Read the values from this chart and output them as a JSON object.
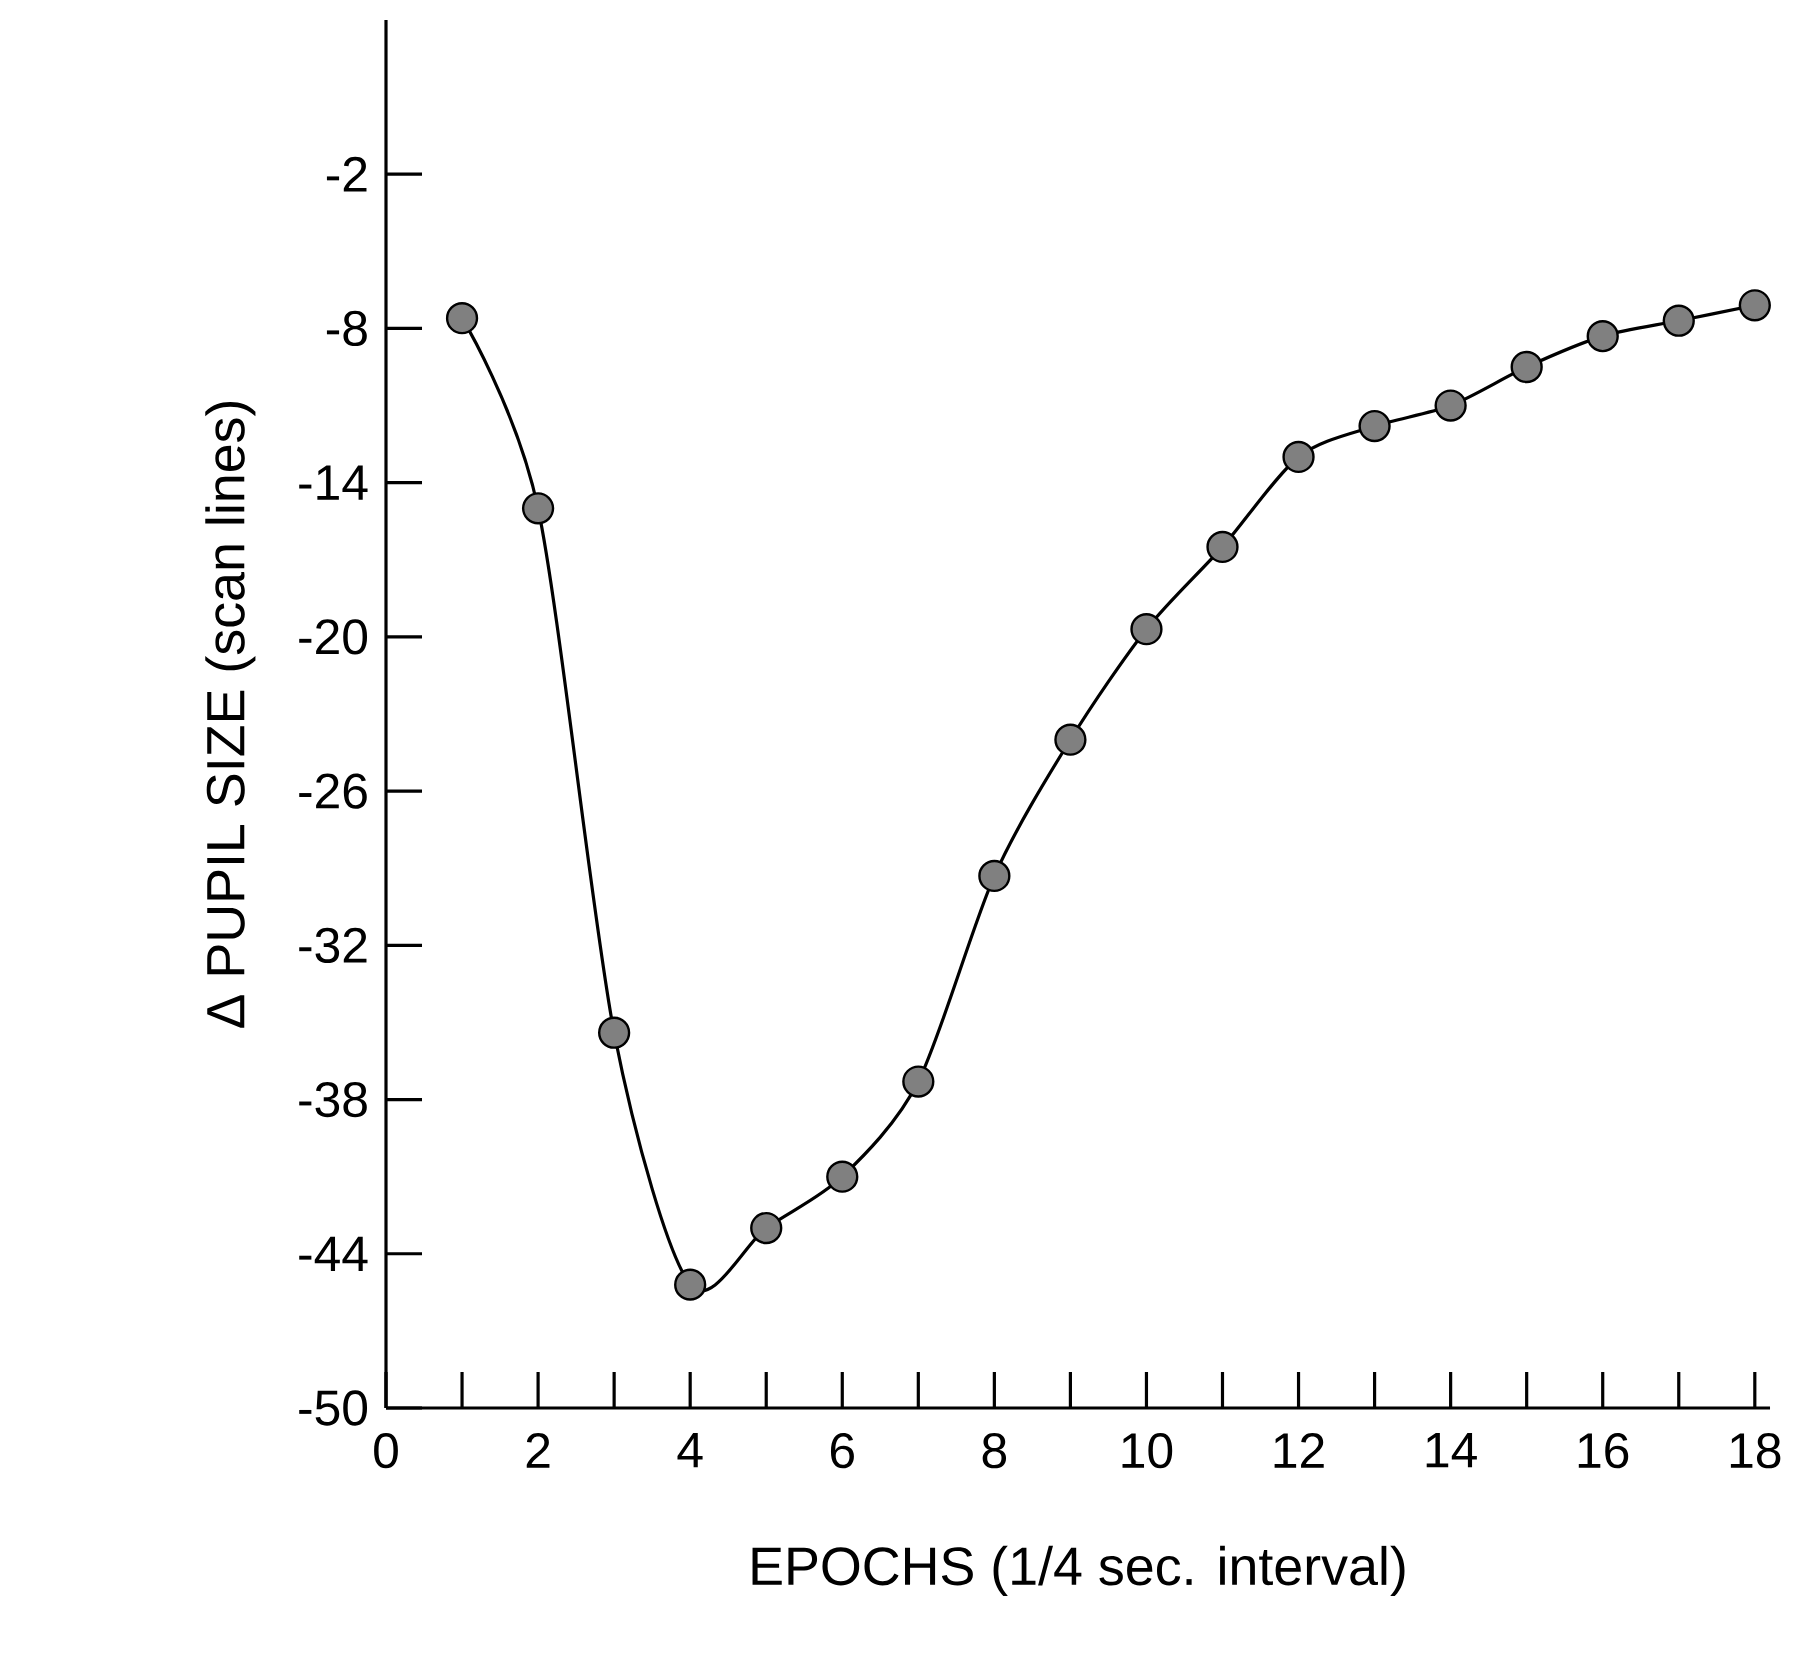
{
  "chart_data": {
    "type": "line",
    "xlabel": "EPOCHS (1/4 sec. interval)",
    "ylabel": "Δ PUPIL SIZE (scan lines)",
    "x": [
      1,
      2,
      3,
      4,
      5,
      6,
      7,
      8,
      9,
      10,
      11,
      12,
      13,
      14,
      15,
      16,
      17,
      18
    ],
    "series": [
      {
        "color": "#808080",
        "values": [
          -7.6,
          -15.0,
          -35.4,
          -45.2,
          -43.0,
          -41.0,
          -37.3,
          -29.3,
          -24.0,
          -19.7,
          -16.5,
          -13.0,
          -11.8,
          -11.0,
          -9.5,
          -8.3,
          -7.7,
          -7.1
        ]
      }
    ],
    "xlim": [
      0,
      18.2
    ],
    "ylim": [
      -50,
      4
    ],
    "xticks": [
      0,
      2,
      4,
      6,
      8,
      10,
      12,
      14,
      16,
      18
    ],
    "yticks": [
      -50,
      -44,
      -38,
      -32,
      -26,
      -20,
      -14,
      -8,
      -2
    ],
    "marker": "circle",
    "line_style": "solid",
    "grid": false
  }
}
